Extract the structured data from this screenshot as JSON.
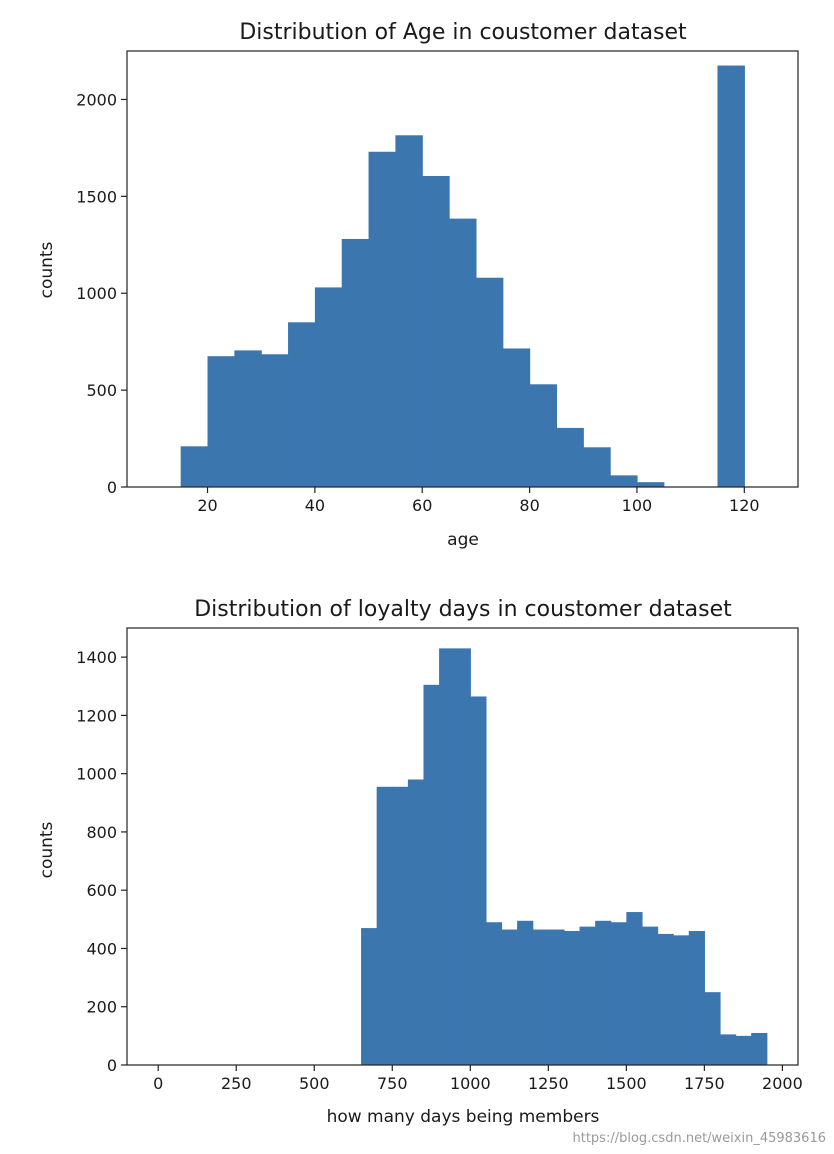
{
  "chart_data": [
    {
      "type": "bar",
      "title": "Distribution of Age in coustomer dataset",
      "xlabel": "age",
      "ylabel": "counts",
      "xlim": [
        5,
        130
      ],
      "ylim": [
        0,
        2250
      ],
      "xticks": [
        20,
        40,
        60,
        80,
        100,
        120
      ],
      "yticks": [
        0,
        500,
        1000,
        1500,
        2000
      ],
      "bar_color": "#3b76af",
      "bins": [
        {
          "x0": 15,
          "x1": 20,
          "value": 210
        },
        {
          "x0": 20,
          "x1": 25,
          "value": 675
        },
        {
          "x0": 25,
          "x1": 30,
          "value": 705
        },
        {
          "x0": 30,
          "x1": 35,
          "value": 685
        },
        {
          "x0": 35,
          "x1": 40,
          "value": 850
        },
        {
          "x0": 40,
          "x1": 45,
          "value": 1030
        },
        {
          "x0": 45,
          "x1": 50,
          "value": 1280
        },
        {
          "x0": 50,
          "x1": 55,
          "value": 1730
        },
        {
          "x0": 55,
          "x1": 60,
          "value": 1815
        },
        {
          "x0": 60,
          "x1": 65,
          "value": 1605
        },
        {
          "x0": 65,
          "x1": 70,
          "value": 1385
        },
        {
          "x0": 70,
          "x1": 75,
          "value": 1080
        },
        {
          "x0": 75,
          "x1": 80,
          "value": 715
        },
        {
          "x0": 80,
          "x1": 85,
          "value": 530
        },
        {
          "x0": 85,
          "x1": 90,
          "value": 305
        },
        {
          "x0": 90,
          "x1": 95,
          "value": 205
        },
        {
          "x0": 95,
          "x1": 100,
          "value": 60
        },
        {
          "x0": 100,
          "x1": 105,
          "value": 25
        },
        {
          "x0": 115,
          "x1": 120,
          "value": 2175
        }
      ]
    },
    {
      "type": "bar",
      "title": "Distribution of loyalty days in coustomer dataset",
      "xlabel": "how many days being members",
      "ylabel": "counts",
      "xlim": [
        -100,
        2050
      ],
      "ylim": [
        0,
        1500
      ],
      "xticks": [
        0,
        250,
        500,
        750,
        1000,
        1250,
        1500,
        1750,
        2000
      ],
      "yticks": [
        0,
        200,
        400,
        600,
        800,
        1000,
        1200,
        1400
      ],
      "bar_color": "#3b76af",
      "bins": [
        {
          "x0": 650,
          "x1": 700,
          "value": 470
        },
        {
          "x0": 700,
          "x1": 750,
          "value": 955
        },
        {
          "x0": 750,
          "x1": 800,
          "value": 955
        },
        {
          "x0": 800,
          "x1": 850,
          "value": 980
        },
        {
          "x0": 850,
          "x1": 900,
          "value": 1305
        },
        {
          "x0": 900,
          "x1": 950,
          "value": 1430
        },
        {
          "x0": 950,
          "x1": 1000,
          "value": 1430
        },
        {
          "x0": 1000,
          "x1": 1050,
          "value": 1265
        },
        {
          "x0": 1050,
          "x1": 1100,
          "value": 490
        },
        {
          "x0": 1100,
          "x1": 1150,
          "value": 465
        },
        {
          "x0": 1150,
          "x1": 1200,
          "value": 495
        },
        {
          "x0": 1200,
          "x1": 1250,
          "value": 465
        },
        {
          "x0": 1250,
          "x1": 1300,
          "value": 465
        },
        {
          "x0": 1300,
          "x1": 1350,
          "value": 460
        },
        {
          "x0": 1350,
          "x1": 1400,
          "value": 475
        },
        {
          "x0": 1400,
          "x1": 1450,
          "value": 495
        },
        {
          "x0": 1450,
          "x1": 1500,
          "value": 490
        },
        {
          "x0": 1500,
          "x1": 1550,
          "value": 525
        },
        {
          "x0": 1550,
          "x1": 1600,
          "value": 475
        },
        {
          "x0": 1600,
          "x1": 1650,
          "value": 450
        },
        {
          "x0": 1650,
          "x1": 1700,
          "value": 445
        },
        {
          "x0": 1700,
          "x1": 1750,
          "value": 460
        },
        {
          "x0": 1750,
          "x1": 1800,
          "value": 250
        },
        {
          "x0": 1800,
          "x1": 1850,
          "value": 105
        },
        {
          "x0": 1850,
          "x1": 1900,
          "value": 100
        },
        {
          "x0": 1900,
          "x1": 1950,
          "value": 110
        }
      ]
    }
  ],
  "watermark": "https://blog.csdn.net/weixin_45983616"
}
